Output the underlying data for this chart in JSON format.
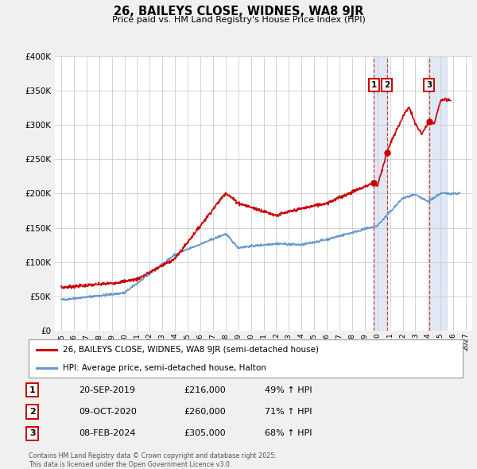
{
  "title": "26, BAILEYS CLOSE, WIDNES, WA8 9JR",
  "subtitle": "Price paid vs. HM Land Registry's House Price Index (HPI)",
  "ylabel_ticks": [
    "£0",
    "£50K",
    "£100K",
    "£150K",
    "£200K",
    "£250K",
    "£300K",
    "£350K",
    "£400K"
  ],
  "ytick_values": [
    0,
    50000,
    100000,
    150000,
    200000,
    250000,
    300000,
    350000,
    400000
  ],
  "ylim": [
    0,
    400000
  ],
  "xlim_start": 1994.5,
  "xlim_end": 2027.5,
  "red_color": "#cc0000",
  "blue_color": "#6699cc",
  "background_color": "#f0f0f0",
  "plot_bg_color": "#ffffff",
  "grid_color": "#cccccc",
  "sale1_date": 2019.72,
  "sale1_price": 216000,
  "sale2_date": 2020.77,
  "sale2_price": 260000,
  "sale3_date": 2024.1,
  "sale3_price": 305000,
  "legend_line1": "26, BAILEYS CLOSE, WIDNES, WA8 9JR (semi-detached house)",
  "legend_line2": "HPI: Average price, semi-detached house, Halton",
  "table_rows": [
    [
      "1",
      "20-SEP-2019",
      "£216,000",
      "49% ↑ HPI"
    ],
    [
      "2",
      "09-OCT-2020",
      "£260,000",
      "71% ↑ HPI"
    ],
    [
      "3",
      "08-FEB-2024",
      "£305,000",
      "68% ↑ HPI"
    ]
  ],
  "footnote": "Contains HM Land Registry data © Crown copyright and database right 2025.\nThis data is licensed under the Open Government Licence v3.0.",
  "shade1_start": 2019.72,
  "shade1_end": 2020.77,
  "shade2_start": 2024.1,
  "shade2_end": 2025.5
}
